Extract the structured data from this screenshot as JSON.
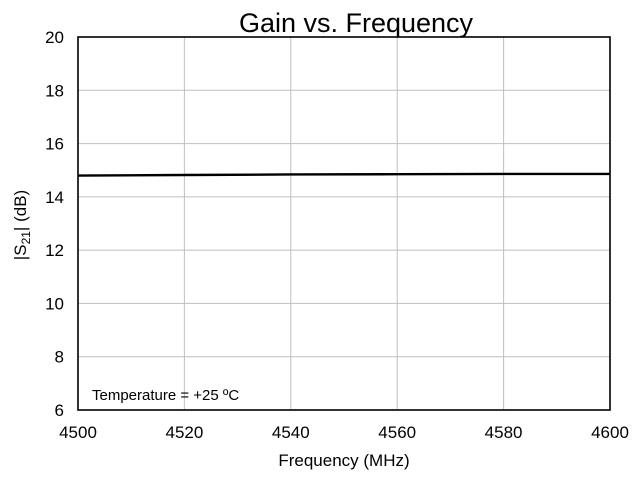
{
  "chart_data": {
    "type": "line",
    "title": "Gain vs. Frequency",
    "xlabel": "Frequency (MHz)",
    "ylabel": {
      "prefix": "|S",
      "subscript": "21",
      "suffix": "| (dB)"
    },
    "annotation": "Temperature = +25 ºC",
    "xlim": [
      4500,
      4600
    ],
    "ylim": [
      6,
      20
    ],
    "xticks": [
      4500,
      4520,
      4540,
      4560,
      4580,
      4600
    ],
    "yticks": [
      6,
      8,
      10,
      12,
      14,
      16,
      18,
      20
    ],
    "grid": true,
    "series": [
      {
        "color": "#000000",
        "x": [
          4500,
          4520,
          4540,
          4560,
          4580,
          4600
        ],
        "y": [
          14.8,
          14.82,
          14.84,
          14.85,
          14.86,
          14.86
        ]
      }
    ]
  }
}
